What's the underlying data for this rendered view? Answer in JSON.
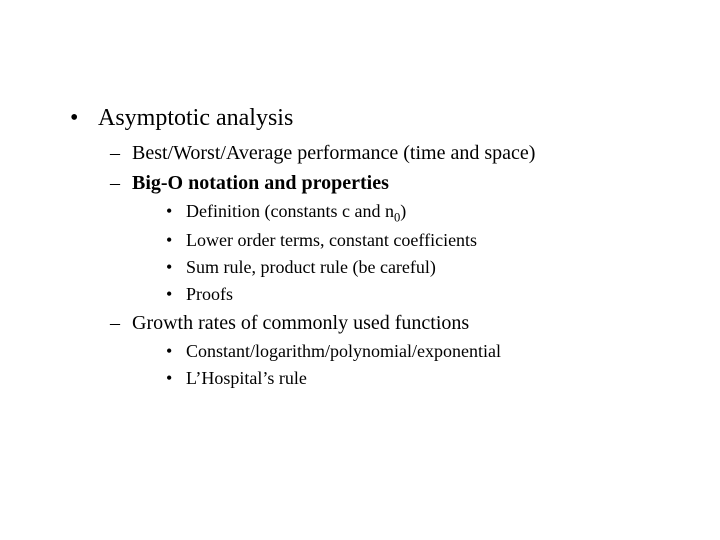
{
  "text_color": "#000000",
  "background_color": "#ffffff",
  "font_family": "Times New Roman",
  "l1": {
    "bullet": "•",
    "fontsize": 24,
    "item1": "Asymptotic analysis"
  },
  "l2": {
    "dash": "–",
    "fontsize": 20,
    "item1": "Best/Worst/Average performance (time and space)",
    "item2": {
      "text": "Big-O notation and properties",
      "bold": true
    },
    "item3": "Growth rates of commonly used functions"
  },
  "l3_a": {
    "dot": "•",
    "fontsize": 18,
    "item1_pre": "Definition (",
    "item1_c": "constants c and n",
    "item1_sub": "0",
    "item1_post": ")",
    "item2": "Lower order terms, constant coefficients",
    "item3": "Sum rule, product rule (be careful)",
    "item4": "Proofs"
  },
  "l3_b": {
    "dot": "•",
    "fontsize": 18,
    "item1": "Constant/logarithm/polynomial/exponential",
    "item2": "L’Hospital’s rule"
  }
}
